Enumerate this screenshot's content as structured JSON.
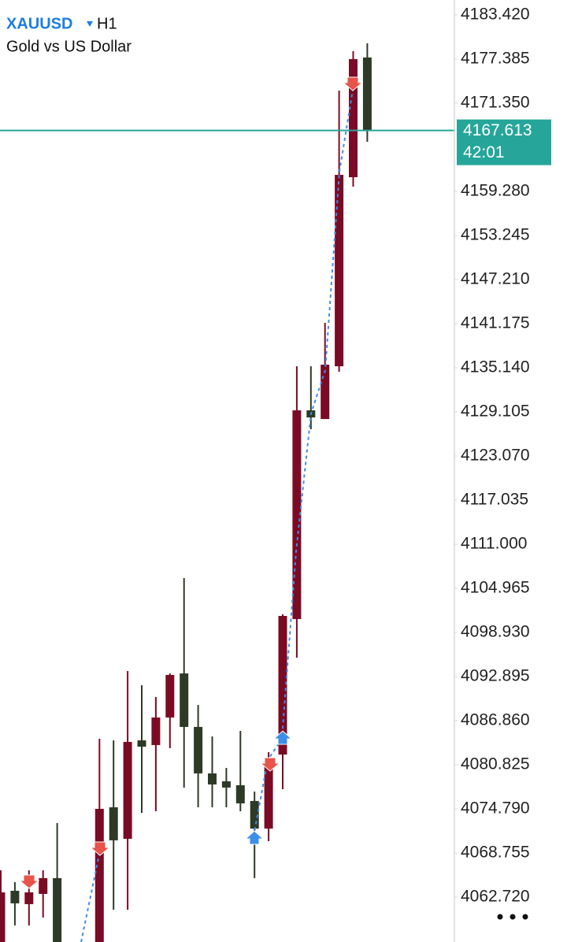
{
  "chart_data": {
    "type": "candlestick",
    "symbol": "XAUUSD",
    "timeframe": "H1",
    "subtitle": "Gold vs US Dollar",
    "current_price": 4167.613,
    "countdown": "42:01",
    "up_color": "#7b0b25",
    "down_color": "#2d3a26",
    "price_line_color": "#26a69a",
    "ylim": [
      4056.57,
      4185.47
    ],
    "yticks": [
      {
        "value": 4183.42,
        "label": "4183.420"
      },
      4177.385,
      {
        "value": 4171.35,
        "label": "4171.350"
      },
      {
        "value": 4159.28,
        "label": "4159.280"
      },
      4153.245,
      {
        "value": 4147.21,
        "label": "4147.210"
      },
      4141.175,
      {
        "value": 4135.14,
        "label": "4135.140"
      },
      4129.105,
      {
        "value": 4123.07,
        "label": "4123.070"
      },
      4117.035,
      {
        "value": 4111,
        "label": "4111.000"
      },
      4104.965,
      {
        "value": 4098.93,
        "label": "4098.930"
      },
      4092.895,
      {
        "value": 4086.86,
        "label": "4086.860"
      },
      4080.825,
      {
        "value": 4074.79,
        "label": "4074.790"
      },
      4068.755,
      {
        "value": 4062.72,
        "label": "4062.720"
      }
    ],
    "categories": [
      null,
      null,
      null,
      null,
      null,
      null,
      null,
      null,
      null,
      null,
      null,
      null,
      null,
      null,
      null,
      null,
      null,
      null,
      null,
      null,
      null,
      null,
      null,
      null,
      null,
      null,
      null
    ],
    "open": [
      4056.57,
      4063.58,
      4061.75,
      4063.15,
      4065.31,
      null,
      null,
      4056.57,
      4075.0,
      4070.69,
      4084.16,
      4083.52,
      4087.29,
      4093.32,
      4086.0,
      4079.64,
      4078.56,
      4078.02,
      4075.87,
      4072.09,
      4082.22,
      4100.76,
      4129.32,
      4128.13,
      4135.35,
      4161.22,
      4177.6
    ],
    "high": [
      4066.38,
      4064.76,
      4066.38,
      4066.38,
      4072.85,
      null,
      null,
      4084.38,
      4084.16,
      4093.65,
      4091.71,
      4090.09,
      4093.32,
      4106.36,
      4089.01,
      4084.7,
      4080.39,
      4085.46,
      4077.16,
      4082.55,
      4101.41,
      4135.35,
      4135.35,
      4141.28,
      4173.07,
      4178.46,
      4179.54
    ],
    "low": [
      4056.57,
      4058.84,
      4058.84,
      4059.92,
      4056.57,
      null,
      null,
      4056.57,
      4060.99,
      4060.99,
      4074.25,
      4074.46,
      4083.09,
      4077.7,
      4075.0,
      4075.0,
      4075.0,
      4074.46,
      4065.31,
      4070.37,
      4077.48,
      4095.48,
      4126.73,
      4128.13,
      4134.6,
      4159.93,
      4166.07
    ],
    "close": [
      4063.36,
      4061.86,
      4063.36,
      4065.31,
      4056.57,
      null,
      null,
      4074.79,
      4070.48,
      4083.95,
      4083.3,
      4087.29,
      4093.11,
      4086.0,
      4079.64,
      4078.13,
      4077.7,
      4075.54,
      4072.09,
      4081.79,
      4101.19,
      4129.32,
      4128.35,
      4135.57,
      4161.54,
      4177.38,
      4167.613
    ]
  }
}
